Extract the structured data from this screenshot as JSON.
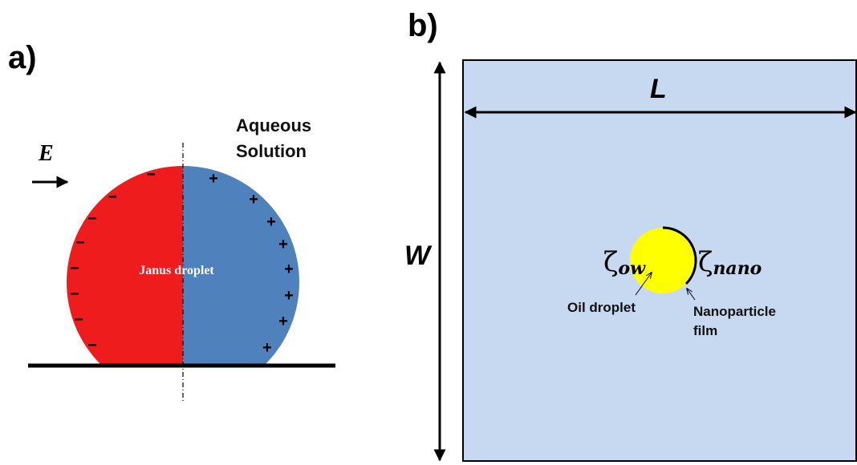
{
  "panel_a": {
    "label": "a)",
    "field_symbol": "E",
    "medium": [
      "Aqueous",
      "Solution"
    ],
    "droplet_label": "Janus droplet",
    "negative_sign": "−",
    "positive_sign": "+"
  },
  "panel_b": {
    "label": "b)",
    "width_label": "W",
    "length_label": "L",
    "zeta_ow": {
      "symbol": "ζ",
      "subscript": "ow"
    },
    "zeta_nano": {
      "symbol": "ζ",
      "subscript": "nano"
    },
    "droplet_label": "Oil droplet",
    "film_label": [
      "Nanoparticle",
      "film"
    ]
  }
}
